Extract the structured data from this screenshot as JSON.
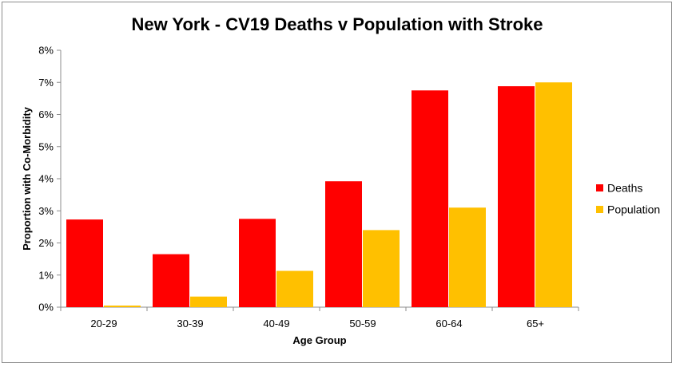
{
  "chart_data": {
    "type": "bar",
    "title": "New York - CV19 Deaths v Population with Stroke",
    "xlabel": "Age Group",
    "ylabel": "Proportion with Co-Morbidity",
    "categories": [
      "20-29",
      "30-39",
      "40-49",
      "50-59",
      "60-64",
      "65+"
    ],
    "series": [
      {
        "name": "Deaths",
        "color": "#ff0000",
        "values": [
          2.73,
          1.65,
          2.75,
          3.92,
          6.75,
          6.88
        ]
      },
      {
        "name": "Population",
        "color": "#ffc000",
        "values": [
          0.05,
          0.33,
          1.13,
          2.4,
          3.1,
          7.0
        ]
      }
    ],
    "ylim": [
      0,
      8
    ],
    "yticks": [
      "0%",
      "1%",
      "2%",
      "3%",
      "4%",
      "5%",
      "6%",
      "7%",
      "8%"
    ],
    "grid": false,
    "legend_position": "right"
  }
}
